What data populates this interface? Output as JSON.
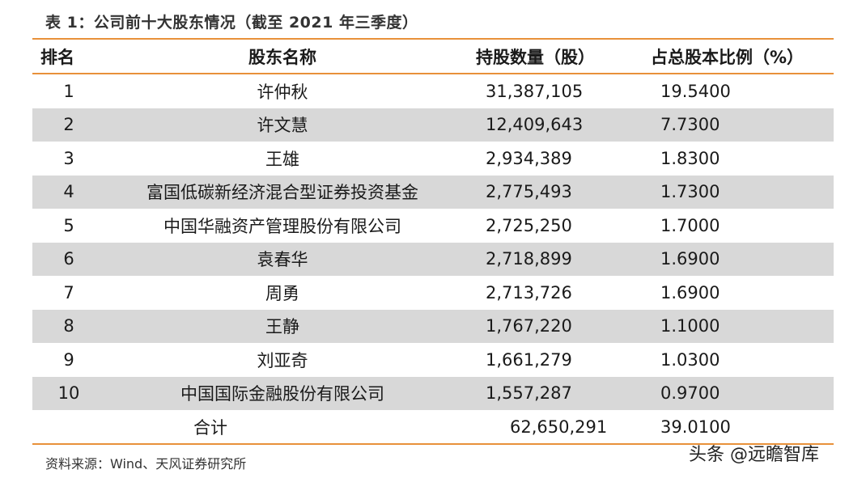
{
  "title": "表 1：公司前十大股东情况（截至 2021 年三季度）",
  "headers": {
    "rank": "排名",
    "name": "股东名称",
    "shares": "持股数量（股）",
    "ratio": "占总股本比例（%）"
  },
  "rows": [
    {
      "rank": "1",
      "name": "许仲秋",
      "shares": "31,387,105",
      "ratio": "19.5400"
    },
    {
      "rank": "2",
      "name": "许文慧",
      "shares": "12,409,643",
      "ratio": "7.7300"
    },
    {
      "rank": "3",
      "name": "王雄",
      "shares": "2,934,389",
      "ratio": "1.8300"
    },
    {
      "rank": "4",
      "name": "富国低碳新经济混合型证券投资基金",
      "shares": "2,775,493",
      "ratio": "1.7300"
    },
    {
      "rank": "5",
      "name": "中国华融资产管理股份有限公司",
      "shares": "2,725,250",
      "ratio": "1.7000"
    },
    {
      "rank": "6",
      "name": "袁春华",
      "shares": "2,718,899",
      "ratio": "1.6900"
    },
    {
      "rank": "7",
      "name": "周勇",
      "shares": "2,713,726",
      "ratio": "1.6900"
    },
    {
      "rank": "8",
      "name": "王静",
      "shares": "1,767,220",
      "ratio": "1.1000"
    },
    {
      "rank": "9",
      "name": "刘亚奇",
      "shares": "1,661,279",
      "ratio": "1.0300"
    },
    {
      "rank": "10",
      "name": "中国国际金融股份有限公司",
      "shares": "1,557,287",
      "ratio": "0.9700"
    }
  ],
  "total": {
    "label": "合计",
    "shares": "62,650,291",
    "ratio": "39.0100"
  },
  "source": "资料来源：Wind、天风证券研究所",
  "watermark": "头条 @远瞻智库",
  "colors": {
    "accent_rule": "#e8913a",
    "shaded_row": "#d8d8d8"
  }
}
